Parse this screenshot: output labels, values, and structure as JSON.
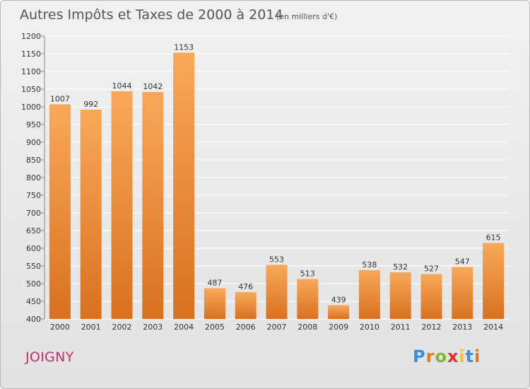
{
  "colors": {
    "bar_light": "#f9a85a",
    "bar_dark": "#d8711f",
    "title": "#555555",
    "city": "#c2306e",
    "grid": "#ffffff"
  },
  "footer": {
    "city": "JOIGNY",
    "logo_letters": [
      "P",
      "r",
      "o",
      "x",
      "i",
      "t",
      "i"
    ],
    "logo_colors": [
      "#3a8fd8",
      "#e07a1f",
      "#7fb93a",
      "#d9342b",
      "#f2c230",
      "#3a8fd8",
      "#e07a1f"
    ]
  },
  "chart_data": {
    "type": "bar",
    "title": "Autres Impôts et Taxes de 2000 à 2014",
    "subtitle": "(en milliers d'€)",
    "xlabel": "",
    "ylabel": "",
    "ylim": [
      400,
      1200
    ],
    "ytick_step": 50,
    "grid": true,
    "categories": [
      "2000",
      "2001",
      "2002",
      "2003",
      "2004",
      "2005",
      "2006",
      "2007",
      "2008",
      "2009",
      "2010",
      "2011",
      "2012",
      "2013",
      "2014"
    ],
    "values": [
      1007,
      992,
      1044,
      1042,
      1153,
      487,
      476,
      553,
      513,
      439,
      538,
      532,
      527,
      547,
      615
    ]
  }
}
